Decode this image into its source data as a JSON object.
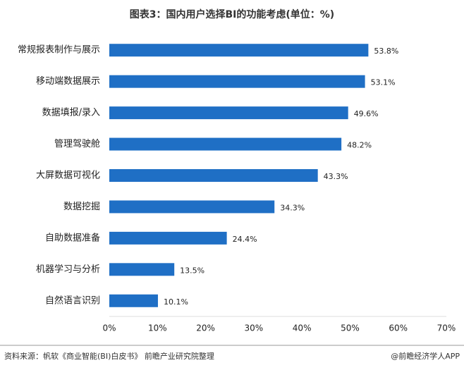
{
  "chart_data": {
    "type": "hbar",
    "title": "图表3：国内用户选择BI的功能考虑(单位：%)",
    "categories": [
      "常规报表制作与展示",
      "移动端数据展示",
      "数据填报/录入",
      "管理驾驶舱",
      "大屏数据可视化",
      "数据挖掘",
      "自助数据准备",
      "机器学习与分析",
      "自然语言识别"
    ],
    "values": [
      53.8,
      53.1,
      49.6,
      48.2,
      43.3,
      34.3,
      24.4,
      13.5,
      10.1
    ],
    "value_labels": [
      "53.8%",
      "53.1%",
      "49.6%",
      "48.2%",
      "43.3%",
      "34.3%",
      "24.4%",
      "13.5%",
      "10.1%"
    ],
    "color": "#1f6fc5",
    "xlim": [
      0,
      70
    ],
    "xticks": [
      {
        "value": 0,
        "label": "0%"
      },
      {
        "value": 10,
        "label": "10%"
      },
      {
        "value": 20,
        "label": "20%"
      },
      {
        "value": 30,
        "label": "30%"
      },
      {
        "value": 40,
        "label": "40%"
      },
      {
        "value": 50,
        "label": "50%"
      },
      {
        "value": 60,
        "label": "60%"
      },
      {
        "value": 70,
        "label": "70%"
      }
    ],
    "grid": false
  },
  "footer": {
    "source": "资料来源：帆软《商业智能(BI)白皮书》 前瞻产业研究院整理",
    "brand": "@前瞻经济学人APP"
  }
}
